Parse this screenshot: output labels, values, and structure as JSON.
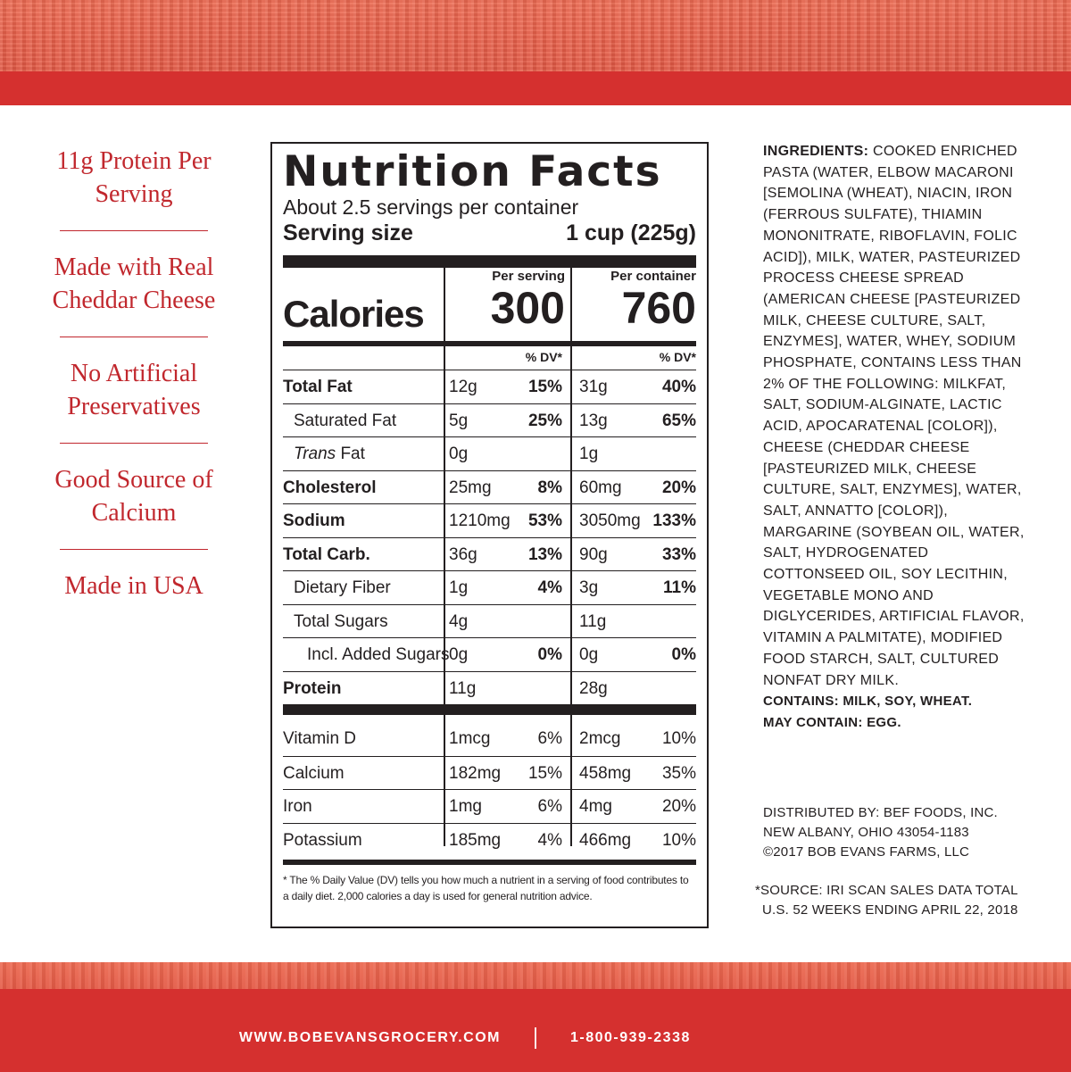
{
  "claims": [
    "11g Protein Per Serving",
    "Made with Real Cheddar Cheese",
    "No Artificial Preservatives",
    "Good Source of Calcium",
    "Made in USA"
  ],
  "nutrition": {
    "title": "Nutrition Facts",
    "servings": "About 2.5 servings per container",
    "serving_size_label": "Serving size",
    "serving_size_value": "1 cup (225g)",
    "calories_label": "Calories",
    "per_serving_label": "Per serving",
    "per_container_label": "Per container",
    "calories_serving": "300",
    "calories_container": "760",
    "dv_label": "% DV*",
    "rows": [
      {
        "label": "Total Fat",
        "a1": "12g",
        "d1": "15%",
        "a2": "31g",
        "d2": "40%"
      },
      {
        "label": "Saturated Fat",
        "a1": "5g",
        "d1": "25%",
        "a2": "13g",
        "d2": "65%"
      },
      {
        "label_italic": "Trans",
        "label_rest": " Fat",
        "a1": "0g",
        "d1": "",
        "a2": "1g",
        "d2": ""
      },
      {
        "label": "Cholesterol",
        "a1": "25mg",
        "d1": "8%",
        "a2": "60mg",
        "d2": "20%"
      },
      {
        "label": "Sodium",
        "a1": "1210mg",
        "d1": "53%",
        "a2": "3050mg",
        "d2": "133%"
      },
      {
        "label": "Total Carb.",
        "a1": "36g",
        "d1": "13%",
        "a2": "90g",
        "d2": "33%"
      },
      {
        "label": "Dietary Fiber",
        "a1": "1g",
        "d1": "4%",
        "a2": "3g",
        "d2": "11%"
      },
      {
        "label": "Total Sugars",
        "a1": "4g",
        "d1": "",
        "a2": "11g",
        "d2": ""
      },
      {
        "label": "Incl. Added Sugars",
        "a1": "0g",
        "d1": "0%",
        "a2": "0g",
        "d2": "0%"
      },
      {
        "label": "Protein",
        "a1": "11g",
        "d1": "",
        "a2": "28g",
        "d2": ""
      }
    ],
    "vitamins": [
      {
        "label": "Vitamin D",
        "a1": "1mcg",
        "d1": "6%",
        "a2": "2mcg",
        "d2": "10%"
      },
      {
        "label": "Calcium",
        "a1": "182mg",
        "d1": "15%",
        "a2": "458mg",
        "d2": "35%"
      },
      {
        "label": "Iron",
        "a1": "1mg",
        "d1": "6%",
        "a2": "4mg",
        "d2": "20%"
      },
      {
        "label": "Potassium",
        "a1": "185mg",
        "d1": "4%",
        "a2": "466mg",
        "d2": "10%"
      }
    ],
    "footnote": "* The % Daily Value (DV) tells you how much a nutrient in a serving of food contributes to a daily diet. 2,000 calories a day is used for general nutrition advice."
  },
  "ingredients": {
    "heading": "INGREDIENTS:",
    "text": "COOKED ENRICHED PASTA (WATER, ELBOW MACARONI [SEMOLINA (WHEAT), NIACIN, IRON (FERROUS SULFATE), THIAMIN MONONITRATE, RIBOFLAVIN, FOLIC ACID]), MILK, WATER, PASTEURIZED PROCESS CHEESE SPREAD (AMERICAN CHEESE [PASTEURIZED MILK, CHEESE CULTURE, SALT, ENZYMES], WATER, WHEY, SODIUM PHOSPHATE, CONTAINS LESS THAN 2% OF THE FOLLOWING: MILKFAT, SALT, SODIUM-ALGINATE, LACTIC ACID, APOCARATENAL [COLOR]), CHEESE (CHEDDAR CHEESE [PASTEURIZED MILK, CHEESE CULTURE, SALT, ENZYMES], WATER, SALT, ANNATTO [COLOR]), MARGARINE (SOYBEAN OIL, WATER, SALT, HYDROGENATED COTTONSEED OIL, SOY LECITHIN, VEGETABLE MONO AND DIGLYCERIDES, ARTIFICIAL FLAVOR, VITAMIN A PALMITATE), MODIFIED FOOD STARCH, SALT, CULTURED NONFAT DRY MILK.",
    "contains": "CONTAINS: MILK, SOY, WHEAT.",
    "may_contain": "MAY CONTAIN: EGG."
  },
  "distributor": {
    "line1": "DISTRIBUTED BY: BEF FOODS, INC.",
    "line2": "NEW ALBANY, OHIO 43054-1183",
    "line3": "©2017 BOB EVANS FARMS, LLC"
  },
  "source": {
    "line1": "*SOURCE: IRI SCAN SALES DATA TOTAL",
    "line2": "U.S. 52 WEEKS ENDING APRIL 22, 2018"
  },
  "footer": {
    "url": "WWW.BOBEVANSGROCERY.COM",
    "phone": "1-800-939-2338"
  },
  "colors": {
    "brand_red": "#d5302f",
    "claim_red": "#c1272d",
    "ink": "#231f20"
  }
}
